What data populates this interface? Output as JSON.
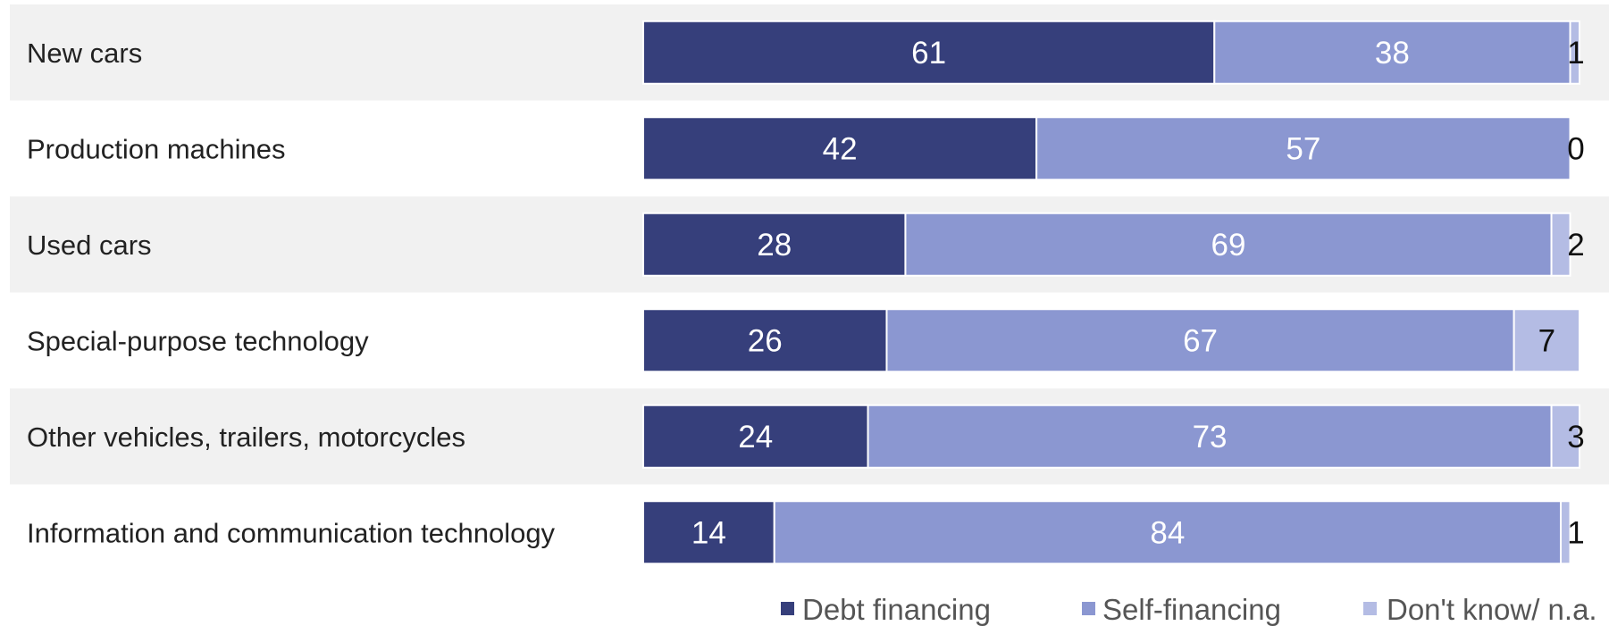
{
  "chart_data": {
    "type": "bar",
    "orientation": "horizontal",
    "stacked": true,
    "categories": [
      "New cars",
      "Production machines",
      "Used cars",
      "Special-purpose technology",
      "Other vehicles, trailers, motorcycles",
      "Information and communication technology"
    ],
    "series": [
      {
        "name": "Debt financing",
        "color": "#363f7b",
        "values": [
          61,
          42,
          28,
          26,
          24,
          14
        ]
      },
      {
        "name": "Self-financing",
        "color": "#8b97d1",
        "values": [
          38,
          57,
          69,
          67,
          73,
          84
        ]
      },
      {
        "name": "Don't know/ n.a.",
        "color": "#b4bce4",
        "values": [
          1,
          0,
          2,
          7,
          3,
          1
        ]
      }
    ],
    "xlim": [
      0,
      100
    ],
    "grid": false,
    "legend_position": "bottom-right",
    "title": "",
    "xlabel": "",
    "ylabel": ""
  }
}
